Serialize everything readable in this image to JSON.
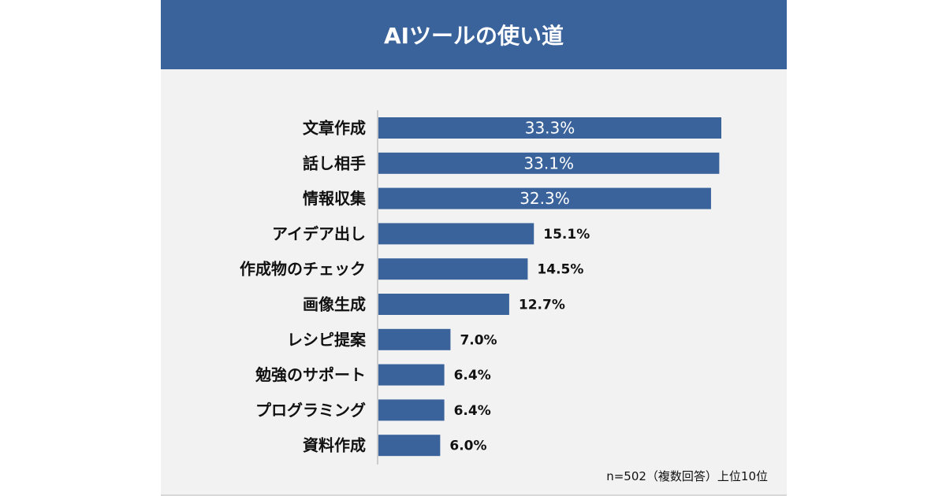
{
  "chart_data": {
    "type": "bar",
    "orientation": "horizontal",
    "title": "AIツールの使い道",
    "categories": [
      "文章作成",
      "話し相手",
      "情報収集",
      "アイデア出し",
      "作成物のチェック",
      "画像生成",
      "レシピ提案",
      "勉強のサポート",
      "プログラミング",
      "資料作成"
    ],
    "values": [
      33.3,
      33.1,
      32.3,
      15.1,
      14.5,
      12.7,
      7.0,
      6.4,
      6.4,
      6.0
    ],
    "value_labels": [
      "33.3%",
      "33.1%",
      "32.3%",
      "15.1%",
      "14.5%",
      "12.7%",
      "7.0%",
      "6.4%",
      "6.4%",
      "6.0%"
    ],
    "xlim": [
      0,
      33.3
    ],
    "note": "n=502（複数回答）上位10位",
    "colors": {
      "bar": "#3a639c",
      "header": "#3a639c"
    }
  }
}
